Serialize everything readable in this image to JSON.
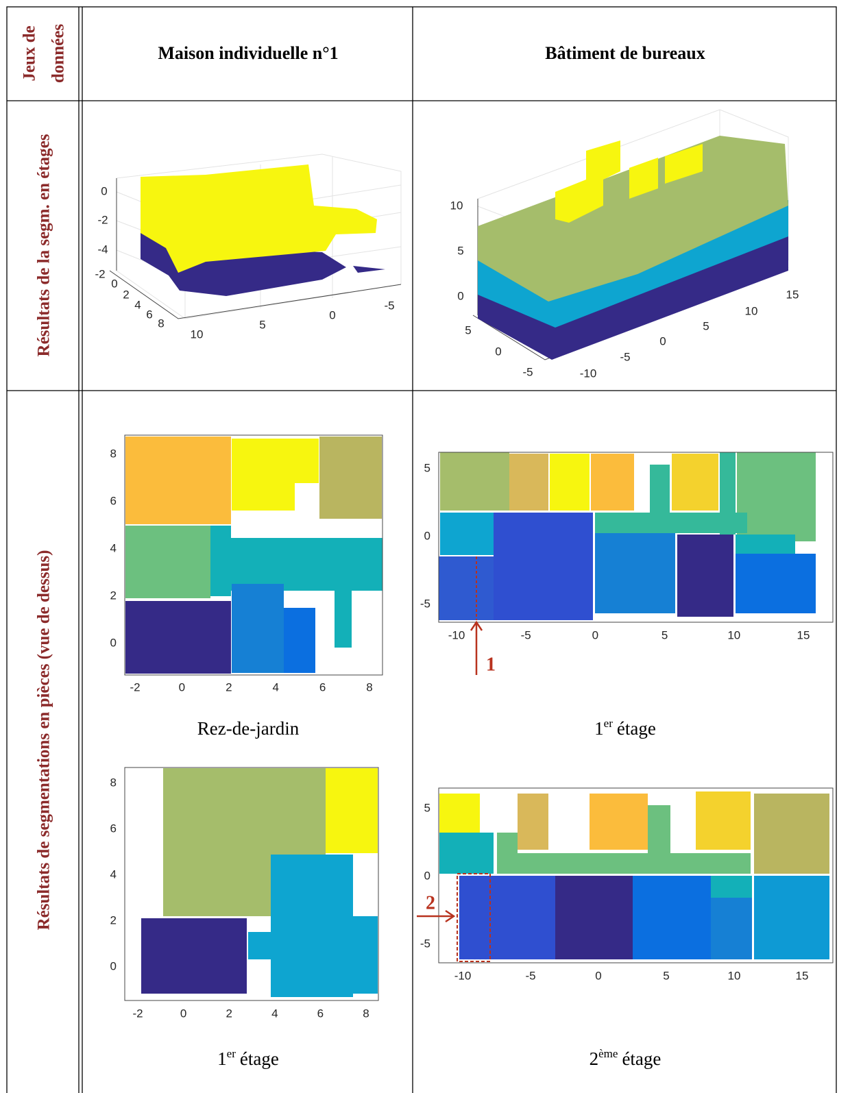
{
  "header": {
    "corner": [
      "Jeux de",
      "données"
    ],
    "columns": [
      "Maison individuelle n°1",
      "Bâtiment de bureaux"
    ]
  },
  "rows": [
    "Résultats de la segm. en étages",
    "Résultats de segmentations en pièces (vue de dessus)"
  ],
  "plots3d": [
    {
      "zticks": [
        0,
        -2,
        -4
      ],
      "yticks": [
        -2,
        0,
        2,
        4,
        6,
        8,
        10
      ],
      "xticks": [
        5,
        0,
        -5
      ]
    },
    {
      "zticks": [
        10,
        5,
        0
      ],
      "yticks": [
        5,
        0,
        -5
      ],
      "xticks": [
        -10,
        -5,
        0,
        5,
        10,
        15
      ]
    }
  ],
  "plots2d": [
    {
      "xticks": [
        -2,
        0,
        2,
        4,
        6,
        8
      ],
      "yticks": [
        8,
        6,
        4,
        2,
        0
      ],
      "caption": {
        "main": "Rez-de-jardin"
      }
    },
    {
      "xticks": [
        -10,
        -5,
        0,
        5,
        10,
        15
      ],
      "yticks": [
        5,
        0,
        -5
      ],
      "caption": {
        "main": "1",
        "sup": "er",
        "rest": "étage"
      }
    },
    {
      "xticks": [
        -2,
        0,
        2,
        4,
        6,
        8
      ],
      "yticks": [
        8,
        6,
        4,
        2,
        0
      ],
      "caption": {
        "main": "1",
        "sup": "er",
        "rest": "étage"
      }
    },
    {
      "xticks": [
        -10,
        -5,
        0,
        5,
        10,
        15
      ],
      "yticks": [
        5,
        0,
        -5
      ],
      "caption": {
        "main": "2",
        "sup": "ème",
        "rest": "étage"
      }
    }
  ],
  "annotations": [
    "1",
    "2"
  ]
}
